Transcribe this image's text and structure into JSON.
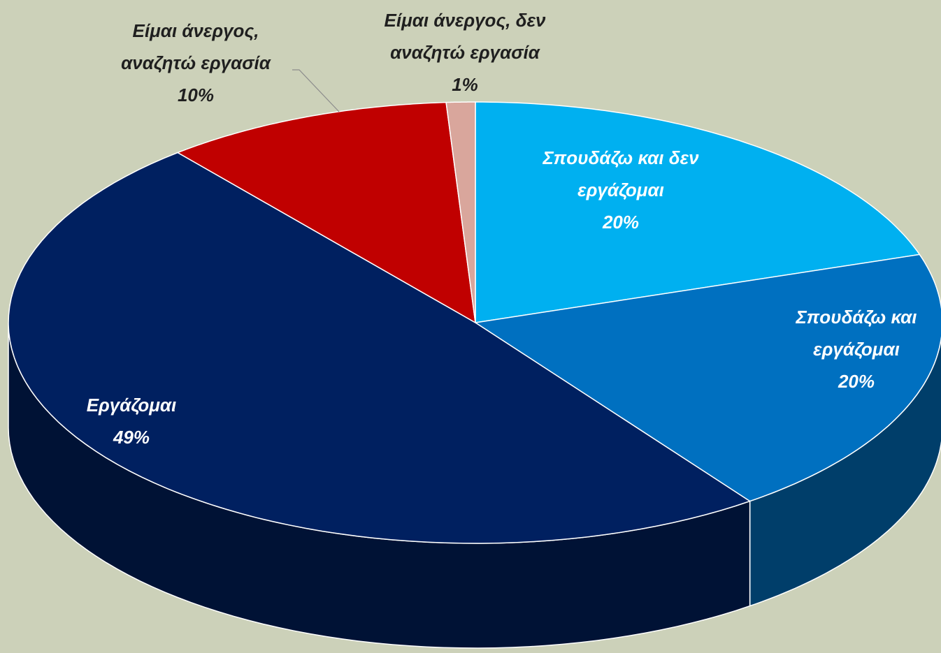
{
  "chart_data": {
    "type": "pie3d",
    "categories": [
      "Σπουδάζω και δεν εργάζομαι",
      "Σπουδάζω και εργάζομαι",
      "Εργάζομαι",
      "Είμαι άνεργος, αναζητώ εργασία",
      "Είμαι άνεργος, δεν αναζητώ εργασία"
    ],
    "values": [
      20,
      20,
      49,
      10,
      1
    ],
    "value_labels": [
      "20%",
      "20%",
      "49%",
      "10%",
      "1%"
    ],
    "colors": [
      "#00b0f0",
      "#0070c0",
      "#002060",
      "#c00000",
      "#d9a69c"
    ]
  }
}
